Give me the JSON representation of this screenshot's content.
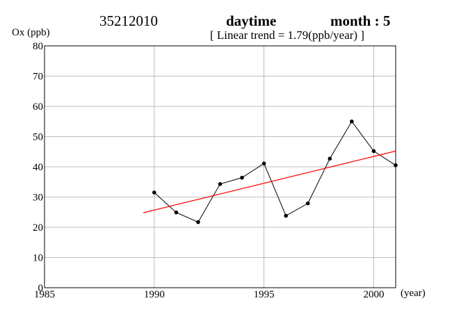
{
  "header": {
    "station": "35212010",
    "period": "daytime",
    "month": "month : 5",
    "trend": "[ Linear trend = 1.79(ppb/year) ]"
  },
  "chart_data": {
    "type": "line",
    "title": "",
    "ylabel": "Ox (ppb)",
    "xlabel": "(year)",
    "xlim": [
      1985,
      2001
    ],
    "ylim": [
      0,
      80
    ],
    "xticks": [
      1985,
      1990,
      1995,
      2000
    ],
    "yticks": [
      0,
      10,
      20,
      30,
      40,
      50,
      60,
      70,
      80
    ],
    "grid": true,
    "colors": {
      "series": "#000000",
      "trend": "#ff0000",
      "grid": "#aaaaaa"
    },
    "series": [
      {
        "x": [
          1990,
          1991,
          1992,
          1993,
          1994,
          1995,
          1996,
          1997,
          1998,
          1999,
          2000,
          2001
        ],
        "values": [
          31.5,
          24.9,
          21.7,
          34.3,
          36.4,
          41.1,
          23.8,
          27.9,
          42.7,
          55.0,
          45.2,
          40.5
        ]
      }
    ],
    "trend_line": {
      "x": [
        1989.5,
        2001
      ],
      "y": [
        24.8,
        45.2
      ]
    }
  }
}
